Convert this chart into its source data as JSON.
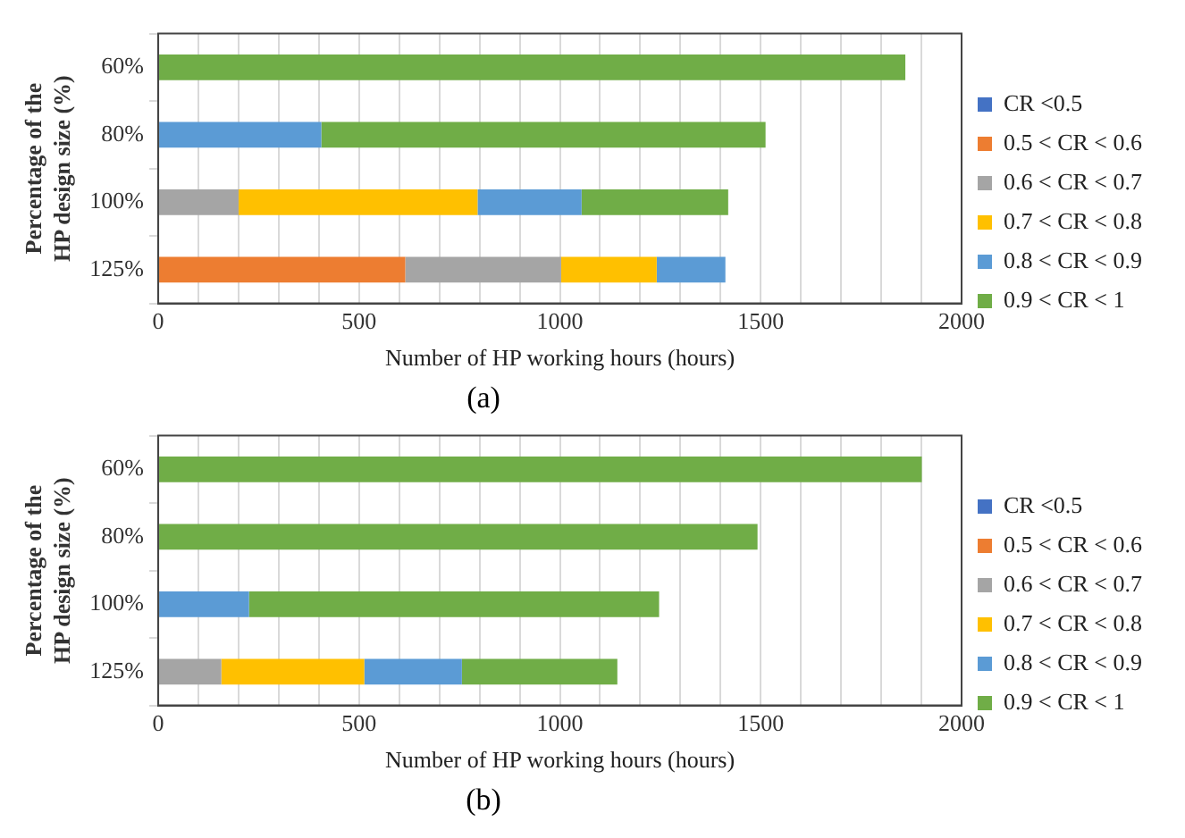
{
  "chart_data": [
    {
      "type": "bar",
      "orientation": "horizontal",
      "stacked": true,
      "categories": [
        "60%",
        "80%",
        "100%",
        "125%"
      ],
      "xlabel": "Number of HP working hours (hours)",
      "ylabel": "Percentage of the HP design size (%)",
      "xlim": [
        0,
        2000
      ],
      "xticks": [
        0,
        {
          "value": 100,
          "label": null
        },
        {
          "value": 200,
          "label": null
        },
        {
          "value": 300,
          "label": null
        },
        {
          "value": 400,
          "label": null
        },
        500,
        {
          "value": 600,
          "label": null
        },
        {
          "value": 700,
          "label": null
        },
        {
          "value": 800,
          "label": null
        },
        {
          "value": 900,
          "label": null
        },
        1000,
        {
          "value": 1100,
          "label": null
        },
        {
          "value": 1200,
          "label": null
        },
        {
          "value": 1300,
          "label": null
        },
        {
          "value": 1400,
          "label": null
        },
        1500,
        {
          "value": 1600,
          "label": null
        },
        {
          "value": 1700,
          "label": null
        },
        {
          "value": 1800,
          "label": null
        },
        {
          "value": 1900,
          "label": null
        },
        2000
      ],
      "grid": "x",
      "legend": "right",
      "annotations": [
        "(a)"
      ],
      "series": [
        {
          "name": "CR <0.5",
          "color": "#4472c4",
          "values": [
            0,
            0,
            0,
            0
          ]
        },
        {
          "name": "0.5 < CR < 0.6",
          "color": "#ed7d31",
          "values": [
            0,
            0,
            0,
            615
          ]
        },
        {
          "name": "0.6 < CR < 0.7",
          "color": "#a5a5a5",
          "values": [
            0,
            0,
            200,
            388
          ]
        },
        {
          "name": "0.7 < CR < 0.8",
          "color": "#ffc000",
          "values": [
            0,
            0,
            595,
            238
          ]
        },
        {
          "name": "0.8 < CR < 0.9",
          "color": "#5b9bd5",
          "values": [
            0,
            406,
            259,
            171
          ]
        },
        {
          "name": "0.9 < CR < 1",
          "color": "#70ad47",
          "values": [
            1860,
            1106,
            365,
            0
          ]
        }
      ]
    },
    {
      "type": "bar",
      "orientation": "horizontal",
      "stacked": true,
      "categories": [
        "60%",
        "80%",
        "100%",
        "125%"
      ],
      "xlabel": "Number of HP working hours (hours)",
      "ylabel": "Percentage of the HP design size (%)",
      "xlim": [
        0,
        2000
      ],
      "xticks": [
        0,
        {
          "value": 100,
          "label": null
        },
        {
          "value": 200,
          "label": null
        },
        {
          "value": 300,
          "label": null
        },
        {
          "value": 400,
          "label": null
        },
        500,
        {
          "value": 600,
          "label": null
        },
        {
          "value": 700,
          "label": null
        },
        {
          "value": 800,
          "label": null
        },
        {
          "value": 900,
          "label": null
        },
        1000,
        {
          "value": 1100,
          "label": null
        },
        {
          "value": 1200,
          "label": null
        },
        {
          "value": 1300,
          "label": null
        },
        {
          "value": 1400,
          "label": null
        },
        1500,
        {
          "value": 1600,
          "label": null
        },
        {
          "value": 1700,
          "label": null
        },
        {
          "value": 1800,
          "label": null
        },
        {
          "value": 1900,
          "label": null
        },
        2000
      ],
      "grid": "x",
      "legend": "right",
      "annotations": [
        "(b)"
      ],
      "series": [
        {
          "name": "CR <0.5",
          "color": "#4472c4",
          "values": [
            0,
            0,
            0,
            0
          ]
        },
        {
          "name": "0.5 < CR < 0.6",
          "color": "#ed7d31",
          "values": [
            0,
            0,
            0,
            0
          ]
        },
        {
          "name": "0.6 < CR < 0.7",
          "color": "#a5a5a5",
          "values": [
            0,
            0,
            0,
            157
          ]
        },
        {
          "name": "0.7 < CR < 0.8",
          "color": "#ffc000",
          "values": [
            0,
            0,
            0,
            356
          ]
        },
        {
          "name": "0.8 < CR < 0.9",
          "color": "#5b9bd5",
          "values": [
            0,
            0,
            226,
            243
          ]
        },
        {
          "name": "0.9 < CR < 1",
          "color": "#70ad47",
          "values": [
            1901,
            1492,
            1021,
            387
          ]
        }
      ]
    }
  ]
}
